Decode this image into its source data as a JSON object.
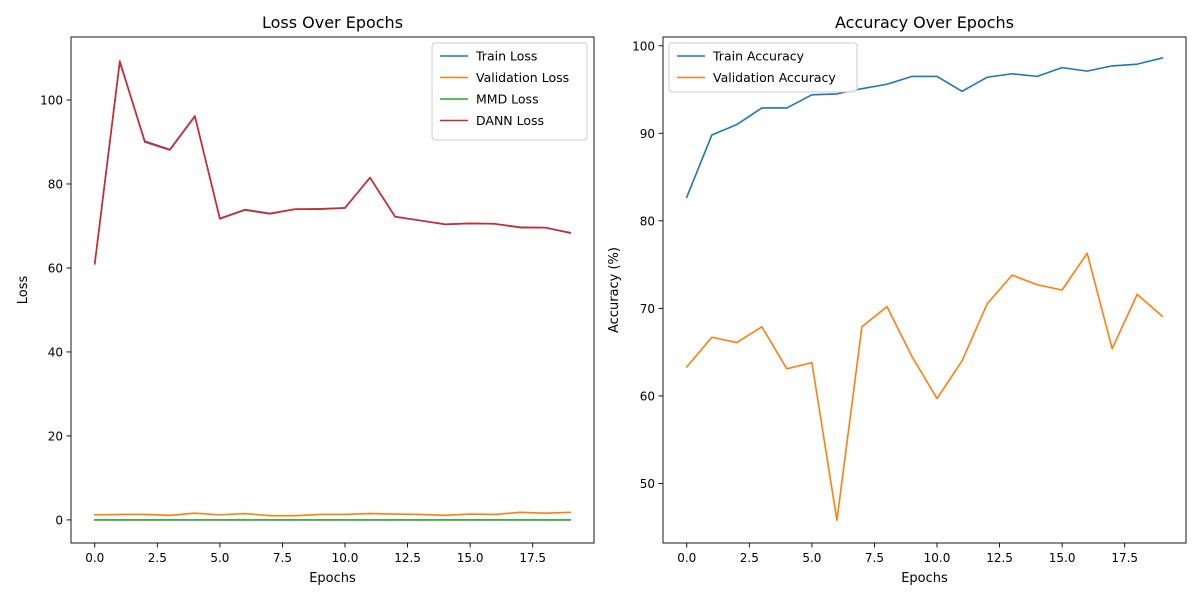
{
  "chart_data": [
    {
      "type": "line",
      "title": "Loss Over Epochs",
      "xlabel": "Epochs",
      "ylabel": "Loss",
      "xlim": [
        -0.95,
        19.95
      ],
      "ylim": [
        -5.5,
        115.0
      ],
      "xticks": [
        0,
        2.5,
        5,
        7.5,
        10,
        12.5,
        15,
        17.5
      ],
      "xtick_labels": [
        "0.0",
        "2.5",
        "5.0",
        "7.5",
        "10.0",
        "12.5",
        "15.0",
        "17.5"
      ],
      "yticks": [
        0,
        20,
        40,
        60,
        80,
        100
      ],
      "ytick_labels": [
        "0",
        "20",
        "40",
        "60",
        "80",
        "100"
      ],
      "grid": false,
      "legend": "top-right",
      "x": [
        0,
        1,
        2,
        3,
        4,
        5,
        6,
        7,
        8,
        9,
        10,
        11,
        12,
        13,
        14,
        15,
        16,
        17,
        18,
        19
      ],
      "series": [
        {
          "name": "Train Loss",
          "color": "#1f77b4",
          "values": [
            61.0,
            109.0,
            90.2,
            88.2,
            96.2,
            71.8,
            73.9,
            73.0,
            74.0,
            74.1,
            74.3,
            81.5,
            72.2,
            71.3,
            70.4,
            70.6,
            70.5,
            69.7,
            69.6,
            68.4
          ]
        },
        {
          "name": "Validation Loss",
          "color": "#ff7f0e",
          "values": [
            1.2,
            1.3,
            1.3,
            1.1,
            1.6,
            1.2,
            1.5,
            1.0,
            1.0,
            1.3,
            1.3,
            1.5,
            1.4,
            1.3,
            1.1,
            1.4,
            1.3,
            1.8,
            1.6,
            1.8
          ]
        },
        {
          "name": "MMD Loss",
          "color": "#2ca02c",
          "values": [
            0,
            0,
            0,
            0,
            0,
            0,
            0,
            0,
            0,
            0,
            0,
            0,
            0,
            0,
            0,
            0,
            0,
            0,
            0,
            0
          ]
        },
        {
          "name": "DANN Loss",
          "color": "#d62728",
          "values": [
            61.0,
            109.3,
            90.0,
            88.1,
            96.1,
            71.7,
            73.8,
            72.9,
            74.0,
            74.0,
            74.3,
            81.5,
            72.2,
            71.3,
            70.4,
            70.6,
            70.5,
            69.6,
            69.6,
            68.3
          ]
        }
      ]
    },
    {
      "type": "line",
      "title": "Accuracy Over Epochs",
      "xlabel": "Epochs",
      "ylabel": "Accuracy (%)",
      "xlim": [
        -0.95,
        19.95
      ],
      "ylim": [
        43.2,
        101.0
      ],
      "xticks": [
        0,
        2.5,
        5,
        7.5,
        10,
        12.5,
        15,
        17.5
      ],
      "xtick_labels": [
        "0.0",
        "2.5",
        "5.0",
        "7.5",
        "10.0",
        "12.5",
        "15.0",
        "17.5"
      ],
      "yticks": [
        50,
        60,
        70,
        80,
        90,
        100
      ],
      "ytick_labels": [
        "50",
        "60",
        "70",
        "80",
        "90",
        "100"
      ],
      "grid": false,
      "legend": "top-left",
      "x": [
        0,
        1,
        2,
        3,
        4,
        5,
        6,
        7,
        8,
        9,
        10,
        11,
        12,
        13,
        14,
        15,
        16,
        17,
        18,
        19
      ],
      "series": [
        {
          "name": "Train Accuracy",
          "color": "#1f77b4",
          "values": [
            82.7,
            89.8,
            91.0,
            92.9,
            92.9,
            94.4,
            94.5,
            95.1,
            95.6,
            96.5,
            96.5,
            94.8,
            96.4,
            96.8,
            96.5,
            97.5,
            97.1,
            97.7,
            97.9,
            98.6
          ]
        },
        {
          "name": "Validation Accuracy",
          "color": "#ff7f0e",
          "values": [
            63.3,
            66.7,
            66.1,
            67.9,
            63.1,
            63.8,
            45.8,
            67.9,
            70.2,
            64.5,
            59.7,
            64.0,
            70.5,
            73.8,
            72.7,
            72.1,
            76.3,
            65.4,
            71.6,
            69.1
          ]
        }
      ]
    }
  ]
}
